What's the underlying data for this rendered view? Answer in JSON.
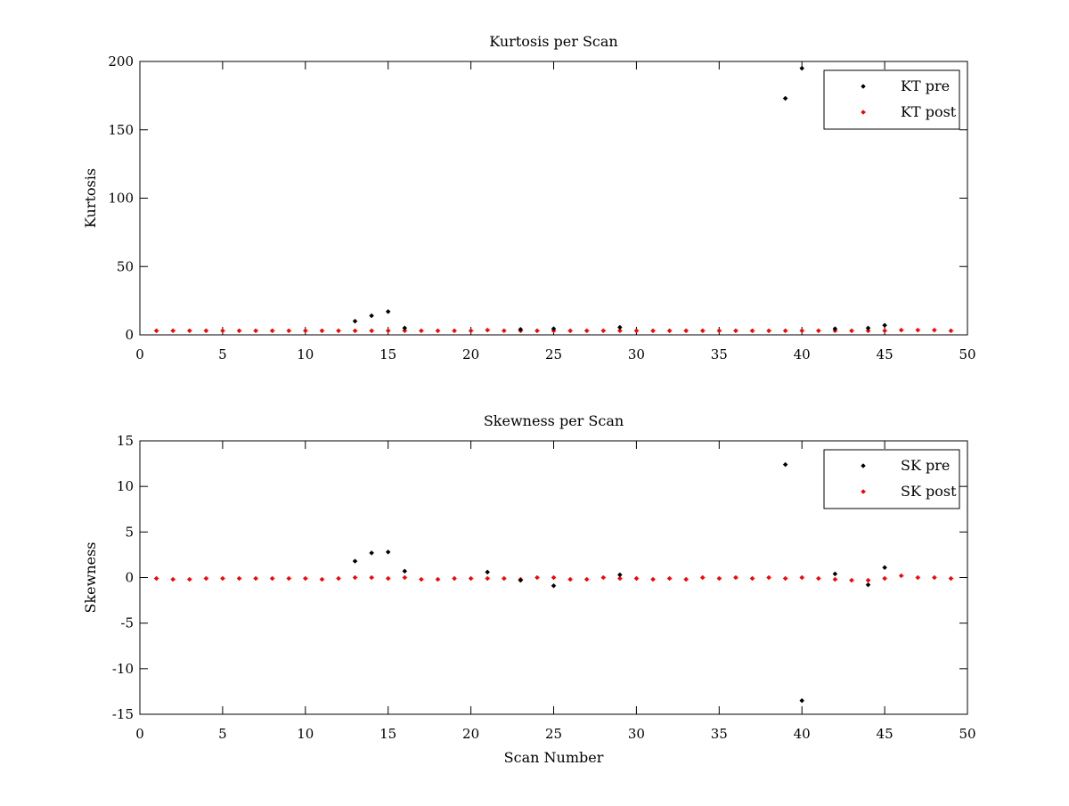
{
  "chart_data": [
    {
      "type": "scatter",
      "title": "Kurtosis per Scan",
      "xlabel": "",
      "ylabel": "Kurtosis",
      "xlim": [
        0,
        50
      ],
      "ylim": [
        0,
        200
      ],
      "xticks": [
        "0",
        "5",
        "10",
        "15",
        "20",
        "25",
        "30",
        "35",
        "40",
        "45",
        "50"
      ],
      "yticks": [
        "0",
        "50",
        "100",
        "150",
        "200"
      ],
      "grid": false,
      "legend_position": "top-right",
      "series": [
        {
          "name": "KT pre",
          "color": "#000000",
          "x": [
            13,
            14,
            15,
            16,
            23,
            25,
            29,
            39,
            40,
            42,
            44,
            45
          ],
          "y": [
            10,
            14,
            17,
            5,
            4,
            4.5,
            5.5,
            173,
            195,
            4.5,
            5,
            7
          ]
        },
        {
          "name": "KT post",
          "color": "#ff0000",
          "x": [
            1,
            2,
            3,
            4,
            5,
            6,
            7,
            8,
            9,
            10,
            11,
            12,
            13,
            14,
            15,
            16,
            17,
            18,
            19,
            20,
            21,
            22,
            23,
            24,
            25,
            26,
            27,
            28,
            29,
            30,
            31,
            32,
            33,
            34,
            35,
            36,
            37,
            38,
            39,
            40,
            41,
            42,
            43,
            44,
            45,
            46,
            47,
            48,
            49
          ],
          "y": [
            3,
            3,
            3,
            3,
            3,
            3,
            3,
            3,
            3,
            3,
            3,
            3,
            3,
            3,
            3,
            3,
            3,
            3,
            3,
            3,
            3.5,
            3,
            3,
            3,
            3,
            3,
            3,
            3,
            3,
            3,
            3,
            3,
            3,
            3,
            3,
            3,
            3,
            3,
            3,
            3,
            3,
            3,
            3,
            3,
            3,
            3.5,
            3.5,
            3.5,
            3
          ]
        }
      ]
    },
    {
      "type": "scatter",
      "title": "Skewness per Scan",
      "xlabel": "Scan Number",
      "ylabel": "Skewness",
      "xlim": [
        0,
        50
      ],
      "ylim": [
        -15,
        15
      ],
      "xticks": [
        "0",
        "5",
        "10",
        "15",
        "20",
        "25",
        "30",
        "35",
        "40",
        "45",
        "50"
      ],
      "yticks": [
        "-15",
        "-10",
        "-5",
        "0",
        "5",
        "10",
        "15"
      ],
      "grid": false,
      "legend_position": "top-right",
      "series": [
        {
          "name": "SK pre",
          "color": "#000000",
          "x": [
            13,
            14,
            15,
            16,
            21,
            23,
            25,
            29,
            39,
            40,
            42,
            44,
            45
          ],
          "y": [
            1.8,
            2.7,
            2.8,
            0.7,
            0.6,
            -0.3,
            -0.9,
            0.3,
            12.4,
            -13.5,
            0.4,
            -0.8,
            1.1
          ]
        },
        {
          "name": "SK post",
          "color": "#ff0000",
          "x": [
            1,
            2,
            3,
            4,
            5,
            6,
            7,
            8,
            9,
            10,
            11,
            12,
            13,
            14,
            15,
            16,
            17,
            18,
            19,
            20,
            21,
            22,
            23,
            24,
            25,
            26,
            27,
            28,
            29,
            30,
            31,
            32,
            33,
            34,
            35,
            36,
            37,
            38,
            39,
            40,
            41,
            42,
            43,
            44,
            45,
            46,
            47,
            48,
            49
          ],
          "y": [
            -0.1,
            -0.2,
            -0.2,
            -0.1,
            -0.1,
            -0.1,
            -0.1,
            -0.1,
            -0.1,
            -0.1,
            -0.2,
            -0.1,
            0,
            0,
            -0.1,
            0,
            -0.2,
            -0.2,
            -0.1,
            -0.1,
            -0.1,
            -0.1,
            -0.2,
            0,
            0,
            -0.2,
            -0.2,
            0,
            -0.1,
            -0.1,
            -0.2,
            -0.1,
            -0.2,
            0,
            -0.1,
            0,
            -0.1,
            0,
            -0.1,
            0,
            -0.1,
            -0.2,
            -0.3,
            -0.3,
            -0.1,
            0.2,
            0,
            0,
            -0.1
          ]
        }
      ]
    }
  ]
}
